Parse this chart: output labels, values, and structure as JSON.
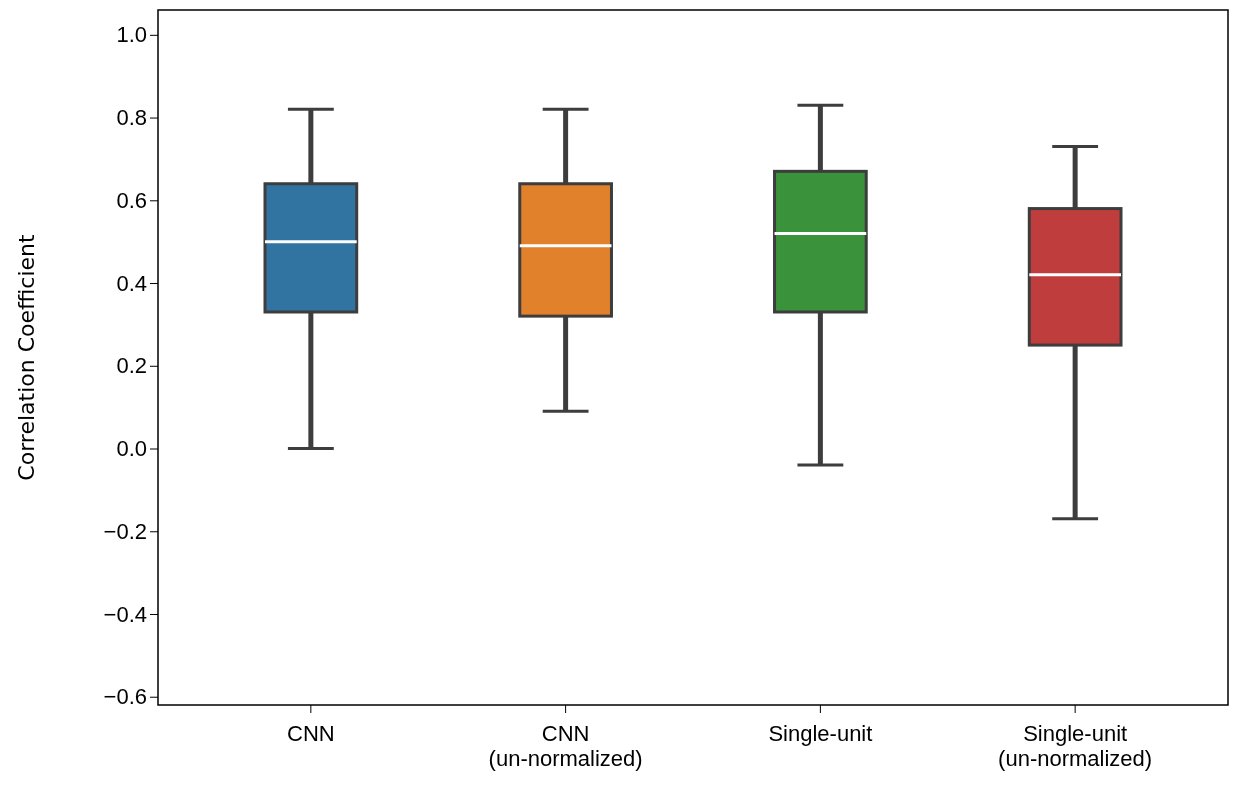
{
  "chart_data": {
    "type": "box",
    "ylabel": "Correlation Coefficient",
    "categories": [
      "CNN",
      "CNN\n(un-normalized)",
      "Single-unit",
      "Single-unit\n(un-normalized)"
    ],
    "colors": [
      "#3274a1",
      "#e1812c",
      "#3a923a",
      "#c03d3e"
    ],
    "boxes": [
      {
        "low": 0.0,
        "q1": 0.33,
        "median": 0.5,
        "q3": 0.64,
        "high": 0.82
      },
      {
        "low": 0.09,
        "q1": 0.32,
        "median": 0.49,
        "q3": 0.64,
        "high": 0.82
      },
      {
        "low": -0.04,
        "q1": 0.33,
        "median": 0.52,
        "q3": 0.67,
        "high": 0.83
      },
      {
        "low": -0.17,
        "q1": 0.25,
        "median": 0.42,
        "q3": 0.58,
        "high": 0.73
      }
    ],
    "ylim": [
      -0.62,
      1.06
    ],
    "yticks": [
      {
        "value": -0.6,
        "label": "−0.6"
      },
      {
        "value": -0.4,
        "label": "−0.4"
      },
      {
        "value": -0.2,
        "label": "−0.2"
      },
      {
        "value": 0,
        "label": "0.0"
      },
      {
        "value": 0.2,
        "label": "0.2"
      },
      {
        "value": 0.4,
        "label": "0.4"
      },
      {
        "value": 0.6,
        "label": "0.6"
      },
      {
        "value": 0.8,
        "label": "0.8"
      },
      {
        "value": 1.0,
        "label": "1.0"
      }
    ],
    "grid": false
  }
}
